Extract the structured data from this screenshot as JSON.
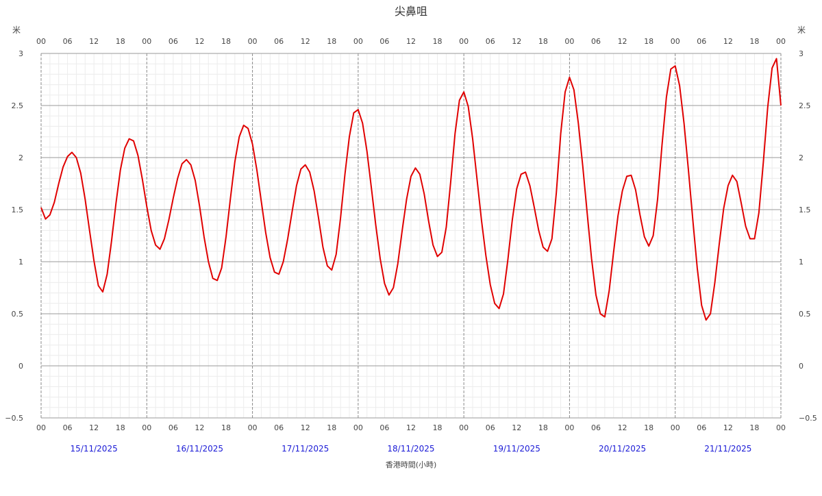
{
  "chart_data": {
    "type": "line",
    "title": "尖鼻咀",
    "ylabel_left": "米",
    "ylabel_right": "米",
    "xlabel": "香港時間(小時)",
    "ylim": [
      -0.5,
      3
    ],
    "yticks": [
      "3",
      "2.5",
      "2",
      "1.5",
      "1",
      "0.5",
      "0",
      "−0.5"
    ],
    "hour_ticks": [
      "00",
      "06",
      "12",
      "18"
    ],
    "hour_tick_end": "00",
    "dates": [
      "15/11/2025",
      "16/11/2025",
      "17/11/2025",
      "18/11/2025",
      "19/11/2025",
      "20/11/2025",
      "21/11/2025"
    ],
    "x_unit": "hours since 00:00 15/11/2025",
    "xlim": [
      0,
      168
    ],
    "line_color": "#e00000",
    "grid": true,
    "series": [
      {
        "points": [
          [
            0,
            1.52
          ],
          [
            1,
            1.41
          ],
          [
            2,
            1.45
          ],
          [
            3,
            1.57
          ],
          [
            4,
            1.75
          ],
          [
            5,
            1.91
          ],
          [
            6,
            2.01
          ],
          [
            7,
            2.05
          ],
          [
            8,
            2.0
          ],
          [
            9,
            1.85
          ],
          [
            10,
            1.6
          ],
          [
            11,
            1.3
          ],
          [
            12,
            1.01
          ],
          [
            13,
            0.77
          ],
          [
            14,
            0.71
          ],
          [
            15,
            0.88
          ],
          [
            16,
            1.2
          ],
          [
            17,
            1.56
          ],
          [
            18,
            1.88
          ],
          [
            19,
            2.09
          ],
          [
            20,
            2.18
          ],
          [
            21,
            2.16
          ],
          [
            22,
            2.02
          ],
          [
            23,
            1.79
          ],
          [
            24,
            1.53
          ],
          [
            25,
            1.3
          ],
          [
            26,
            1.16
          ],
          [
            27,
            1.12
          ],
          [
            28,
            1.22
          ],
          [
            29,
            1.4
          ],
          [
            30,
            1.61
          ],
          [
            31,
            1.8
          ],
          [
            32,
            1.94
          ],
          [
            33,
            1.98
          ],
          [
            34,
            1.93
          ],
          [
            35,
            1.78
          ],
          [
            36,
            1.53
          ],
          [
            37,
            1.24
          ],
          [
            38,
            1.0
          ],
          [
            39,
            0.84
          ],
          [
            40,
            0.82
          ],
          [
            41,
            0.94
          ],
          [
            42,
            1.24
          ],
          [
            43,
            1.61
          ],
          [
            44,
            1.96
          ],
          [
            45,
            2.2
          ],
          [
            46,
            2.31
          ],
          [
            47,
            2.28
          ],
          [
            48,
            2.13
          ],
          [
            49,
            1.88
          ],
          [
            50,
            1.58
          ],
          [
            51,
            1.28
          ],
          [
            52,
            1.04
          ],
          [
            53,
            0.9
          ],
          [
            54,
            0.88
          ],
          [
            55,
            1.0
          ],
          [
            56,
            1.22
          ],
          [
            57,
            1.48
          ],
          [
            58,
            1.73
          ],
          [
            59,
            1.89
          ],
          [
            60,
            1.93
          ],
          [
            61,
            1.86
          ],
          [
            62,
            1.68
          ],
          [
            63,
            1.42
          ],
          [
            64,
            1.14
          ],
          [
            65,
            0.96
          ],
          [
            66,
            0.92
          ],
          [
            67,
            1.07
          ],
          [
            68,
            1.42
          ],
          [
            69,
            1.84
          ],
          [
            70,
            2.2
          ],
          [
            71,
            2.43
          ],
          [
            72,
            2.46
          ],
          [
            73,
            2.33
          ],
          [
            74,
            2.06
          ],
          [
            75,
            1.71
          ],
          [
            76,
            1.35
          ],
          [
            77,
            1.03
          ],
          [
            78,
            0.79
          ],
          [
            79,
            0.68
          ],
          [
            80,
            0.75
          ],
          [
            81,
            0.98
          ],
          [
            82,
            1.3
          ],
          [
            83,
            1.6
          ],
          [
            84,
            1.82
          ],
          [
            85,
            1.9
          ],
          [
            86,
            1.84
          ],
          [
            87,
            1.65
          ],
          [
            88,
            1.39
          ],
          [
            89,
            1.16
          ],
          [
            90,
            1.05
          ],
          [
            91,
            1.09
          ],
          [
            92,
            1.33
          ],
          [
            93,
            1.76
          ],
          [
            94,
            2.23
          ],
          [
            95,
            2.55
          ],
          [
            96,
            2.63
          ],
          [
            97,
            2.49
          ],
          [
            98,
            2.18
          ],
          [
            99,
            1.79
          ],
          [
            100,
            1.4
          ],
          [
            101,
            1.06
          ],
          [
            102,
            0.78
          ],
          [
            103,
            0.6
          ],
          [
            104,
            0.55
          ],
          [
            105,
            0.69
          ],
          [
            106,
            1.02
          ],
          [
            107,
            1.4
          ],
          [
            108,
            1.7
          ],
          [
            109,
            1.84
          ],
          [
            110,
            1.86
          ],
          [
            111,
            1.73
          ],
          [
            112,
            1.52
          ],
          [
            113,
            1.3
          ],
          [
            114,
            1.14
          ],
          [
            115,
            1.1
          ],
          [
            116,
            1.22
          ],
          [
            117,
            1.66
          ],
          [
            118,
            2.23
          ],
          [
            119,
            2.63
          ],
          [
            120,
            2.77
          ],
          [
            121,
            2.65
          ],
          [
            122,
            2.33
          ],
          [
            123,
            1.92
          ],
          [
            124,
            1.47
          ],
          [
            125,
            1.03
          ],
          [
            126,
            0.68
          ],
          [
            127,
            0.5
          ],
          [
            128,
            0.47
          ],
          [
            129,
            0.72
          ],
          [
            130,
            1.09
          ],
          [
            131,
            1.44
          ],
          [
            132,
            1.68
          ],
          [
            133,
            1.82
          ],
          [
            134,
            1.83
          ],
          [
            135,
            1.69
          ],
          [
            136,
            1.45
          ],
          [
            137,
            1.24
          ],
          [
            138,
            1.15
          ],
          [
            139,
            1.25
          ],
          [
            140,
            1.6
          ],
          [
            141,
            2.12
          ],
          [
            142,
            2.58
          ],
          [
            143,
            2.85
          ],
          [
            144,
            2.88
          ],
          [
            145,
            2.69
          ],
          [
            146,
            2.33
          ],
          [
            147,
            1.88
          ],
          [
            148,
            1.4
          ],
          [
            149,
            0.94
          ],
          [
            150,
            0.58
          ],
          [
            151,
            0.44
          ],
          [
            152,
            0.5
          ],
          [
            153,
            0.8
          ],
          [
            154,
            1.17
          ],
          [
            155,
            1.51
          ],
          [
            156,
            1.73
          ],
          [
            157,
            1.83
          ],
          [
            158,
            1.77
          ],
          [
            159,
            1.56
          ],
          [
            160,
            1.34
          ],
          [
            161,
            1.22
          ],
          [
            162,
            1.22
          ],
          [
            163,
            1.47
          ],
          [
            164,
            1.95
          ],
          [
            165,
            2.48
          ],
          [
            166,
            2.86
          ],
          [
            167,
            2.95
          ],
          [
            168,
            2.5
          ]
        ]
      }
    ]
  }
}
